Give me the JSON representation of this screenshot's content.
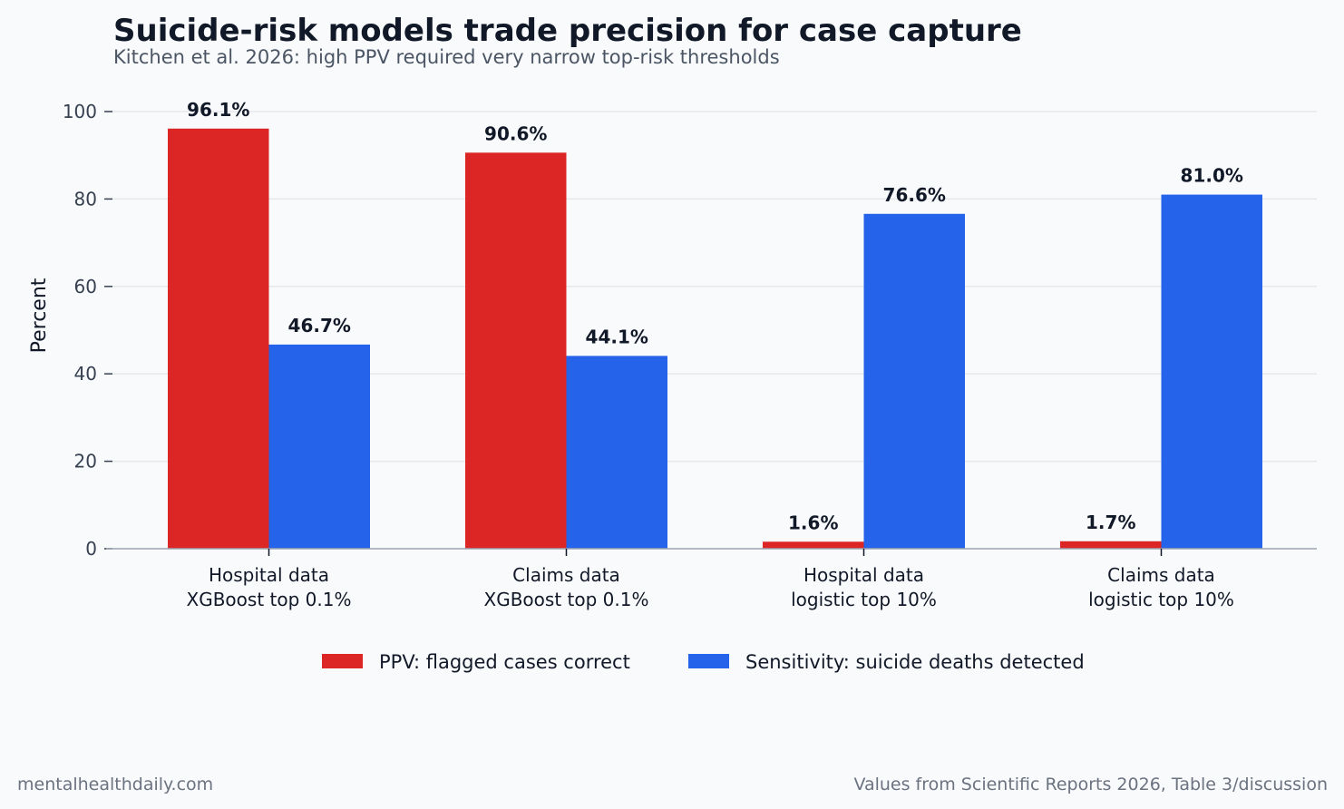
{
  "chart_data": {
    "type": "bar",
    "title": "Suicide-risk models trade precision for case capture",
    "subtitle": "Kitchen et al. 2026: high PPV required very narrow top-risk thresholds",
    "ylabel": "Percent",
    "xlabel": "",
    "ylim": [
      0,
      100
    ],
    "yticks": [
      0,
      20,
      40,
      60,
      80,
      100
    ],
    "grid": true,
    "legend_position": "bottom-center",
    "categories": [
      [
        "Hospital data",
        "XGBoost top 0.1%"
      ],
      [
        "Claims data",
        "XGBoost top 0.1%"
      ],
      [
        "Hospital data",
        "logistic top 10%"
      ],
      [
        "Claims data",
        "logistic top 10%"
      ]
    ],
    "series": [
      {
        "name": "PPV: flagged cases correct",
        "color": "#dc2626",
        "values": [
          96.1,
          90.6,
          1.6,
          1.7
        ],
        "labels": [
          "96.1%",
          "90.6%",
          "1.6%",
          "1.7%"
        ]
      },
      {
        "name": "Sensitivity: suicide deaths detected",
        "color": "#2563eb",
        "values": [
          46.7,
          44.1,
          76.6,
          81.0
        ],
        "labels": [
          "46.7%",
          "44.1%",
          "76.6%",
          "81.0%"
        ]
      }
    ]
  },
  "footer": {
    "left": "mentalhealthdaily.com",
    "right": "Values from Scientific Reports 2026, Table 3/discussion"
  }
}
